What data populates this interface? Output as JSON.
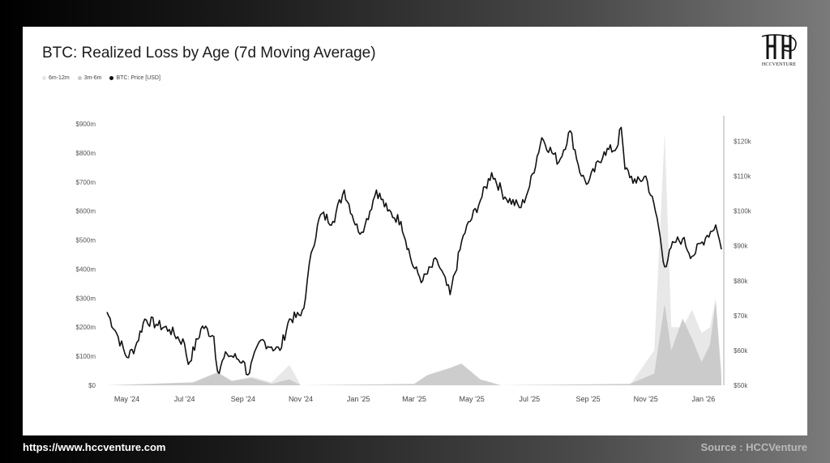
{
  "card": {
    "title": "BTC: Realized Loss by Age (7d Moving Average)",
    "logo_text": "HCCVENTURE"
  },
  "footer": {
    "url": "https://www.hccventure.com",
    "source": "Source : HCCVenture"
  },
  "colors": {
    "price_line": "#111111",
    "loss_6m_12m": "#e6e6e6",
    "loss_3m_6m": "#c8c8c8",
    "background": "#ffffff"
  },
  "chart_data": {
    "type": "area",
    "title": "BTC: Realized Loss by Age (7d Moving Average)",
    "legend": {
      "placement": "top-left",
      "entries": [
        {
          "name": "6m-12m",
          "color": "#e6e6e6"
        },
        {
          "name": "3m-6m",
          "color": "#c8c8c8"
        },
        {
          "name": "BTC: Price [USD]",
          "color": "#111111"
        }
      ]
    },
    "grid": false,
    "x_ticks": [
      "May '24",
      "Jul '24",
      "Sep '24",
      "Nov '24",
      "Jan '25",
      "Mar '25",
      "May '25",
      "Jul '25",
      "Sep '25",
      "Nov '25",
      "Jan '26"
    ],
    "x_tick_dates": [
      "2024-05-01",
      "2024-07-01",
      "2024-09-01",
      "2024-11-01",
      "2025-01-01",
      "2025-03-01",
      "2025-05-01",
      "2025-07-01",
      "2025-09-01",
      "2025-11-01",
      "2026-01-01"
    ],
    "x_range": [
      "2024-04-10",
      "2026-01-20"
    ],
    "y_left": {
      "label": "",
      "ticks": [
        "$0",
        "$100m",
        "$200m",
        "$300m",
        "$400m",
        "$500m",
        "$600m",
        "$700m",
        "$800m",
        "$900m"
      ],
      "range": [
        0,
        900
      ]
    },
    "y_right": {
      "label": "",
      "ticks": [
        "$50k",
        "$60k",
        "$70k",
        "$80k",
        "$90k",
        "$100k",
        "$110k",
        "$120k"
      ],
      "range": [
        50,
        125
      ]
    },
    "series": [
      {
        "name": "BTC: Price [USD]",
        "axis": "right",
        "unit": "k USD",
        "points": [
          [
            "2024-04-10",
            71
          ],
          [
            "2024-04-20",
            65
          ],
          [
            "2024-05-01",
            58
          ],
          [
            "2024-05-10",
            61
          ],
          [
            "2024-05-20",
            69
          ],
          [
            "2024-06-01",
            67.5
          ],
          [
            "2024-06-15",
            66
          ],
          [
            "2024-07-01",
            62
          ],
          [
            "2024-07-05",
            56
          ],
          [
            "2024-07-20",
            67
          ],
          [
            "2024-08-01",
            64
          ],
          [
            "2024-08-05",
            54
          ],
          [
            "2024-08-15",
            59
          ],
          [
            "2024-09-01",
            57
          ],
          [
            "2024-09-06",
            53
          ],
          [
            "2024-09-20",
            63
          ],
          [
            "2024-10-01",
            61
          ],
          [
            "2024-10-10",
            60
          ],
          [
            "2024-10-20",
            69
          ],
          [
            "2024-11-01",
            70
          ],
          [
            "2024-11-06",
            75
          ],
          [
            "2024-11-12",
            88
          ],
          [
            "2024-11-22",
            99
          ],
          [
            "2024-12-05",
            97
          ],
          [
            "2024-12-17",
            106
          ],
          [
            "2025-01-01",
            94
          ],
          [
            "2025-01-08",
            96
          ],
          [
            "2025-01-20",
            106
          ],
          [
            "2025-02-01",
            100
          ],
          [
            "2025-02-15",
            97
          ],
          [
            "2025-02-28",
            84
          ],
          [
            "2025-03-10",
            80
          ],
          [
            "2025-03-25",
            86
          ],
          [
            "2025-04-08",
            76
          ],
          [
            "2025-04-22",
            93
          ],
          [
            "2025-05-10",
            103
          ],
          [
            "2025-05-22",
            111
          ],
          [
            "2025-06-05",
            104
          ],
          [
            "2025-06-22",
            101
          ],
          [
            "2025-07-01",
            107
          ],
          [
            "2025-07-14",
            121
          ],
          [
            "2025-08-01",
            114
          ],
          [
            "2025-08-13",
            123
          ],
          [
            "2025-08-25",
            110
          ],
          [
            "2025-09-01",
            108
          ],
          [
            "2025-09-18",
            117
          ],
          [
            "2025-10-01",
            118
          ],
          [
            "2025-10-06",
            124
          ],
          [
            "2025-10-10",
            112
          ],
          [
            "2025-10-22",
            108
          ],
          [
            "2025-11-01",
            110
          ],
          [
            "2025-11-13",
            98
          ],
          [
            "2025-11-21",
            84
          ],
          [
            "2025-12-01",
            91
          ],
          [
            "2025-12-10",
            92
          ],
          [
            "2025-12-20",
            87
          ],
          [
            "2026-01-05",
            93
          ],
          [
            "2026-01-14",
            96
          ],
          [
            "2026-01-20",
            89
          ]
        ]
      },
      {
        "name": "6m-12m",
        "axis": "left",
        "unit": "$m",
        "points": [
          [
            "2024-04-10",
            0
          ],
          [
            "2024-07-10",
            5
          ],
          [
            "2024-08-05",
            35
          ],
          [
            "2024-08-20",
            15
          ],
          [
            "2024-09-10",
            30
          ],
          [
            "2024-10-01",
            10
          ],
          [
            "2024-10-20",
            70
          ],
          [
            "2024-11-01",
            0
          ],
          [
            "2025-03-01",
            0
          ],
          [
            "2025-04-08",
            0
          ],
          [
            "2025-06-01",
            0
          ],
          [
            "2025-10-15",
            0
          ],
          [
            "2025-11-10",
            120
          ],
          [
            "2025-11-21",
            870
          ],
          [
            "2025-11-28",
            200
          ],
          [
            "2025-12-10",
            200
          ],
          [
            "2025-12-20",
            260
          ],
          [
            "2025-12-30",
            180
          ],
          [
            "2026-01-08",
            200
          ],
          [
            "2026-01-14",
            300
          ],
          [
            "2026-01-20",
            50
          ]
        ]
      },
      {
        "name": "3m-6m",
        "axis": "left",
        "unit": "$m",
        "points": [
          [
            "2024-04-10",
            0
          ],
          [
            "2024-07-10",
            10
          ],
          [
            "2024-08-05",
            45
          ],
          [
            "2024-08-20",
            15
          ],
          [
            "2024-09-10",
            25
          ],
          [
            "2024-10-01",
            5
          ],
          [
            "2024-10-20",
            20
          ],
          [
            "2024-11-01",
            0
          ],
          [
            "2025-03-01",
            5
          ],
          [
            "2025-03-15",
            35
          ],
          [
            "2025-04-08",
            60
          ],
          [
            "2025-04-20",
            75
          ],
          [
            "2025-05-10",
            20
          ],
          [
            "2025-06-01",
            0
          ],
          [
            "2025-10-15",
            5
          ],
          [
            "2025-11-10",
            40
          ],
          [
            "2025-11-21",
            280
          ],
          [
            "2025-11-28",
            120
          ],
          [
            "2025-12-10",
            230
          ],
          [
            "2025-12-20",
            160
          ],
          [
            "2025-12-30",
            80
          ],
          [
            "2026-01-08",
            140
          ],
          [
            "2026-01-14",
            290
          ],
          [
            "2026-01-20",
            20
          ]
        ]
      }
    ]
  }
}
